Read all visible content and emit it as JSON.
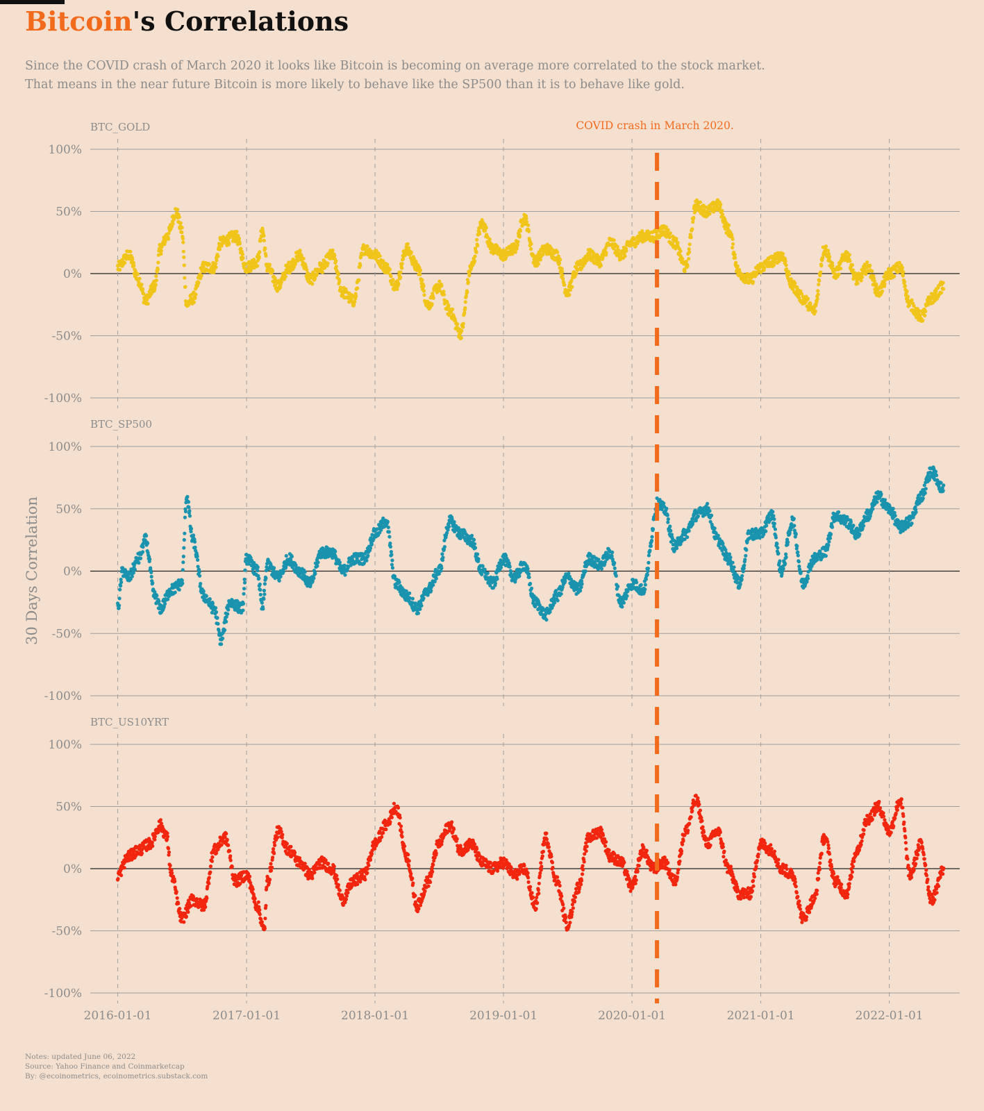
{
  "header": {
    "title_accent": "Bitcoin",
    "title_rest": "'s Correlations",
    "subtitle_line1": "Since the COVID crash of March 2020 it looks like Bitcoin is becoming on average more correlated to the stock market.",
    "subtitle_line2": "That means in the near future Bitcoin is more likely to behave like the SP500 than it is to behave like gold."
  },
  "footer": {
    "note1": "Notes: updated June 06, 2022",
    "note2": "Source: Yahoo Finance and Coinmarketcap",
    "note3": "By: @ecoinometrics, ecoinometrics.substack.com"
  },
  "colors": {
    "background": "#F5E0CF",
    "accent": "#F26B1D",
    "gold": "#F0C419",
    "sp500": "#1A93AE",
    "us10yrt": "#F2260F",
    "grid": "#9e9e9e"
  },
  "chart_data": {
    "type": "scatter",
    "ylabel": "30 Days Correlation",
    "ylim": [
      -100,
      100
    ],
    "y_ticks": [
      "100%",
      "50%",
      "0%",
      "-50%",
      "-100%"
    ],
    "y_tick_values": [
      100,
      50,
      0,
      -50,
      -100
    ],
    "x_ticks": [
      "2016-01-01",
      "2017-01-01",
      "2018-01-01",
      "2019-01-01",
      "2020-01-01",
      "2021-01-01",
      "2022-01-01"
    ],
    "x_range": [
      "2015-10-15",
      "2022-07-20"
    ],
    "annotation": {
      "text": "COVID crash in March 2020.",
      "date": "2020-03-12"
    },
    "panels": [
      {
        "name": "BTC_GOLD",
        "color_key": "gold",
        "points": [
          [
            "2016-01-01",
            5
          ],
          [
            "2016-02-01",
            15
          ],
          [
            "2016-03-01",
            -5
          ],
          [
            "2016-03-20",
            -22
          ],
          [
            "2016-04-15",
            -10
          ],
          [
            "2016-05-01",
            20
          ],
          [
            "2016-05-20",
            30
          ],
          [
            "2016-06-15",
            50
          ],
          [
            "2016-07-01",
            35
          ],
          [
            "2016-07-15",
            -25
          ],
          [
            "2016-08-01",
            -20
          ],
          [
            "2016-09-01",
            5
          ],
          [
            "2016-10-01",
            5
          ],
          [
            "2016-10-20",
            25
          ],
          [
            "2016-12-01",
            30
          ],
          [
            "2017-01-01",
            5
          ],
          [
            "2017-02-01",
            10
          ],
          [
            "2017-02-15",
            35
          ],
          [
            "2017-03-01",
            5
          ],
          [
            "2017-04-01",
            -10
          ],
          [
            "2017-05-01",
            5
          ],
          [
            "2017-06-01",
            15
          ],
          [
            "2017-07-01",
            -5
          ],
          [
            "2017-08-01",
            5
          ],
          [
            "2017-09-01",
            15
          ],
          [
            "2017-10-01",
            -15
          ],
          [
            "2017-11-01",
            -22
          ],
          [
            "2017-12-01",
            20
          ],
          [
            "2018-01-01",
            15
          ],
          [
            "2018-02-01",
            5
          ],
          [
            "2018-03-01",
            -10
          ],
          [
            "2018-04-01",
            20
          ],
          [
            "2018-05-01",
            5
          ],
          [
            "2018-06-01",
            -25
          ],
          [
            "2018-07-01",
            -10
          ],
          [
            "2018-08-01",
            -30
          ],
          [
            "2018-09-01",
            -48
          ],
          [
            "2018-10-01",
            5
          ],
          [
            "2018-11-01",
            40
          ],
          [
            "2018-12-01",
            20
          ],
          [
            "2019-01-01",
            15
          ],
          [
            "2019-02-01",
            20
          ],
          [
            "2019-03-01",
            45
          ],
          [
            "2019-04-01",
            10
          ],
          [
            "2019-05-01",
            20
          ],
          [
            "2019-06-01",
            15
          ],
          [
            "2019-07-01",
            -15
          ],
          [
            "2019-08-01",
            5
          ],
          [
            "2019-09-01",
            15
          ],
          [
            "2019-10-01",
            10
          ],
          [
            "2019-11-01",
            25
          ],
          [
            "2019-12-01",
            15
          ],
          [
            "2020-01-01",
            25
          ],
          [
            "2020-02-01",
            30
          ],
          [
            "2020-03-01",
            30
          ],
          [
            "2020-04-01",
            35
          ],
          [
            "2020-05-01",
            25
          ],
          [
            "2020-06-01",
            5
          ],
          [
            "2020-07-01",
            55
          ],
          [
            "2020-08-01",
            50
          ],
          [
            "2020-09-01",
            55
          ],
          [
            "2020-10-01",
            35
          ],
          [
            "2020-11-01",
            0
          ],
          [
            "2020-12-01",
            -5
          ],
          [
            "2021-01-01",
            5
          ],
          [
            "2021-02-01",
            10
          ],
          [
            "2021-03-01",
            15
          ],
          [
            "2021-04-01",
            -10
          ],
          [
            "2021-05-01",
            -20
          ],
          [
            "2021-06-01",
            -30
          ],
          [
            "2021-07-01",
            20
          ],
          [
            "2021-08-01",
            0
          ],
          [
            "2021-09-01",
            15
          ],
          [
            "2021-10-01",
            -5
          ],
          [
            "2021-11-01",
            5
          ],
          [
            "2021-12-01",
            -15
          ],
          [
            "2022-01-01",
            0
          ],
          [
            "2022-02-01",
            5
          ],
          [
            "2022-03-01",
            -25
          ],
          [
            "2022-04-01",
            -35
          ],
          [
            "2022-05-01",
            -20
          ],
          [
            "2022-06-05",
            -10
          ]
        ]
      },
      {
        "name": "BTC_SP500",
        "color_key": "sp500",
        "points": [
          [
            "2016-01-01",
            -30
          ],
          [
            "2016-01-15",
            0
          ],
          [
            "2016-02-01",
            -5
          ],
          [
            "2016-03-01",
            10
          ],
          [
            "2016-03-20",
            25
          ],
          [
            "2016-04-15",
            -20
          ],
          [
            "2016-05-01",
            -30
          ],
          [
            "2016-06-01",
            -15
          ],
          [
            "2016-07-01",
            -10
          ],
          [
            "2016-07-15",
            60
          ],
          [
            "2016-08-01",
            25
          ],
          [
            "2016-09-01",
            -20
          ],
          [
            "2016-10-01",
            -30
          ],
          [
            "2016-10-20",
            -55
          ],
          [
            "2016-11-15",
            -25
          ],
          [
            "2016-12-20",
            -30
          ],
          [
            "2017-01-01",
            10
          ],
          [
            "2017-02-01",
            0
          ],
          [
            "2017-02-15",
            -30
          ],
          [
            "2017-03-01",
            5
          ],
          [
            "2017-04-01",
            -5
          ],
          [
            "2017-05-01",
            10
          ],
          [
            "2017-06-01",
            0
          ],
          [
            "2017-07-01",
            -10
          ],
          [
            "2017-08-01",
            15
          ],
          [
            "2017-09-01",
            15
          ],
          [
            "2017-10-01",
            0
          ],
          [
            "2017-11-01",
            10
          ],
          [
            "2017-12-01",
            10
          ],
          [
            "2018-01-01",
            30
          ],
          [
            "2018-02-01",
            40
          ],
          [
            "2018-03-01",
            -10
          ],
          [
            "2018-04-01",
            -20
          ],
          [
            "2018-05-01",
            -30
          ],
          [
            "2018-06-01",
            -15
          ],
          [
            "2018-07-01",
            0
          ],
          [
            "2018-08-01",
            40
          ],
          [
            "2018-09-01",
            30
          ],
          [
            "2018-10-01",
            25
          ],
          [
            "2018-11-01",
            0
          ],
          [
            "2018-12-01",
            -10
          ],
          [
            "2019-01-01",
            10
          ],
          [
            "2019-02-01",
            -5
          ],
          [
            "2019-03-01",
            5
          ],
          [
            "2019-04-01",
            -25
          ],
          [
            "2019-05-01",
            -35
          ],
          [
            "2019-06-01",
            -20
          ],
          [
            "2019-07-01",
            -5
          ],
          [
            "2019-08-01",
            -15
          ],
          [
            "2019-09-01",
            10
          ],
          [
            "2019-10-01",
            5
          ],
          [
            "2019-11-01",
            15
          ],
          [
            "2019-12-01",
            -25
          ],
          [
            "2020-01-01",
            -10
          ],
          [
            "2020-02-01",
            -15
          ],
          [
            "2020-03-15",
            55
          ],
          [
            "2020-04-01",
            50
          ],
          [
            "2020-05-01",
            20
          ],
          [
            "2020-06-01",
            30
          ],
          [
            "2020-07-01",
            45
          ],
          [
            "2020-08-01",
            50
          ],
          [
            "2020-09-01",
            25
          ],
          [
            "2020-10-01",
            10
          ],
          [
            "2020-11-01",
            -10
          ],
          [
            "2020-12-01",
            30
          ],
          [
            "2021-01-01",
            30
          ],
          [
            "2021-02-01",
            45
          ],
          [
            "2021-03-01",
            0
          ],
          [
            "2021-04-01",
            40
          ],
          [
            "2021-05-01",
            -10
          ],
          [
            "2021-06-01",
            10
          ],
          [
            "2021-07-01",
            15
          ],
          [
            "2021-08-01",
            45
          ],
          [
            "2021-09-01",
            40
          ],
          [
            "2021-10-01",
            30
          ],
          [
            "2021-11-01",
            45
          ],
          [
            "2021-12-01",
            60
          ],
          [
            "2022-01-01",
            50
          ],
          [
            "2022-02-01",
            35
          ],
          [
            "2022-03-01",
            40
          ],
          [
            "2022-04-01",
            60
          ],
          [
            "2022-05-01",
            80
          ],
          [
            "2022-06-05",
            65
          ]
        ]
      },
      {
        "name": "BTC_US10YRT",
        "color_key": "us10yrt",
        "points": [
          [
            "2016-01-01",
            -5
          ],
          [
            "2016-02-01",
            10
          ],
          [
            "2016-03-01",
            15
          ],
          [
            "2016-04-01",
            20
          ],
          [
            "2016-05-01",
            35
          ],
          [
            "2016-05-20",
            25
          ],
          [
            "2016-06-01",
            -5
          ],
          [
            "2016-07-01",
            -40
          ],
          [
            "2016-08-01",
            -25
          ],
          [
            "2016-09-01",
            -30
          ],
          [
            "2016-10-01",
            15
          ],
          [
            "2016-11-01",
            25
          ],
          [
            "2016-12-01",
            -10
          ],
          [
            "2017-01-01",
            -5
          ],
          [
            "2017-02-01",
            -30
          ],
          [
            "2017-02-20",
            -50
          ],
          [
            "2017-03-01",
            -10
          ],
          [
            "2017-04-01",
            30
          ],
          [
            "2017-05-01",
            15
          ],
          [
            "2017-06-01",
            5
          ],
          [
            "2017-07-01",
            -5
          ],
          [
            "2017-08-01",
            5
          ],
          [
            "2017-09-01",
            0
          ],
          [
            "2017-10-01",
            -25
          ],
          [
            "2017-11-01",
            -10
          ],
          [
            "2017-12-01",
            -5
          ],
          [
            "2018-01-01",
            20
          ],
          [
            "2018-02-01",
            35
          ],
          [
            "2018-03-01",
            50
          ],
          [
            "2018-04-01",
            10
          ],
          [
            "2018-05-01",
            -30
          ],
          [
            "2018-06-01",
            -10
          ],
          [
            "2018-07-01",
            20
          ],
          [
            "2018-08-01",
            35
          ],
          [
            "2018-09-01",
            15
          ],
          [
            "2018-10-01",
            20
          ],
          [
            "2018-11-01",
            5
          ],
          [
            "2018-12-01",
            0
          ],
          [
            "2019-01-01",
            5
          ],
          [
            "2019-02-01",
            -5
          ],
          [
            "2019-03-01",
            0
          ],
          [
            "2019-04-01",
            -30
          ],
          [
            "2019-05-01",
            25
          ],
          [
            "2019-06-01",
            -10
          ],
          [
            "2019-07-01",
            -45
          ],
          [
            "2019-08-01",
            -15
          ],
          [
            "2019-09-01",
            25
          ],
          [
            "2019-10-01",
            30
          ],
          [
            "2019-11-01",
            10
          ],
          [
            "2019-12-01",
            5
          ],
          [
            "2020-01-01",
            -15
          ],
          [
            "2020-02-01",
            15
          ],
          [
            "2020-03-01",
            0
          ],
          [
            "2020-04-01",
            5
          ],
          [
            "2020-05-01",
            -10
          ],
          [
            "2020-06-01",
            30
          ],
          [
            "2020-07-01",
            55
          ],
          [
            "2020-08-01",
            20
          ],
          [
            "2020-09-01",
            30
          ],
          [
            "2020-10-01",
            0
          ],
          [
            "2020-11-01",
            -20
          ],
          [
            "2020-12-01",
            -20
          ],
          [
            "2021-01-01",
            20
          ],
          [
            "2021-02-01",
            15
          ],
          [
            "2021-03-01",
            0
          ],
          [
            "2021-04-01",
            -5
          ],
          [
            "2021-05-01",
            -40
          ],
          [
            "2021-06-01",
            -25
          ],
          [
            "2021-07-01",
            25
          ],
          [
            "2021-08-01",
            -10
          ],
          [
            "2021-09-01",
            -20
          ],
          [
            "2021-10-01",
            15
          ],
          [
            "2021-11-01",
            40
          ],
          [
            "2021-12-01",
            50
          ],
          [
            "2022-01-01",
            30
          ],
          [
            "2022-02-01",
            55
          ],
          [
            "2022-03-01",
            -5
          ],
          [
            "2022-04-01",
            20
          ],
          [
            "2022-05-01",
            -25
          ],
          [
            "2022-06-05",
            0
          ]
        ]
      }
    ]
  }
}
